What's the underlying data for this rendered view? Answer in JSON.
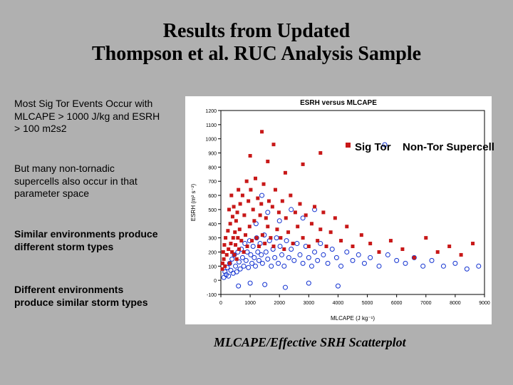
{
  "title_l1": "Results from Updated",
  "title_l2": "Thompson et al. RUC Analysis Sample",
  "side": {
    "p1": "Most Sig Tor Events Occur with MLCAPE > 1000 J/kg and ESRH > 100 m2s2",
    "p2": "But many non-tornadic supercells also occur in that parameter space",
    "p3": "Similar environments produce different storm types",
    "p4": "Different environments produce similar storm types"
  },
  "legend": {
    "a": "Sig Tor",
    "b": "Non-Tor Supercell"
  },
  "caption": "MLCAPE/Effective SRH Scatterplot",
  "chart": {
    "title": "ESRH versus MLCAPE",
    "xlabel": "MLCAPE (J kg⁻¹)",
    "ylabel": "ESRH (m² s⁻²)",
    "xlim": [
      0,
      9000
    ],
    "ylim": [
      -100,
      1200
    ],
    "xtick_step": 1000,
    "ytick_step": 100,
    "bg": "#ffffff",
    "axis_color": "#000000",
    "font_title": 10,
    "font_axis": 8,
    "font_tick": 7,
    "series": {
      "sigtor": {
        "color": "#c81818",
        "marker": "square",
        "size": 5,
        "pts": [
          [
            50,
            80
          ],
          [
            60,
            120
          ],
          [
            80,
            200
          ],
          [
            100,
            150
          ],
          [
            120,
            250
          ],
          [
            140,
            100
          ],
          [
            160,
            300
          ],
          [
            200,
            180
          ],
          [
            240,
            350
          ],
          [
            260,
            220
          ],
          [
            280,
            500
          ],
          [
            300,
            120
          ],
          [
            320,
            400
          ],
          [
            340,
            260
          ],
          [
            360,
            600
          ],
          [
            380,
            200
          ],
          [
            400,
            450
          ],
          [
            420,
            300
          ],
          [
            440,
            520
          ],
          [
            460,
            180
          ],
          [
            480,
            340
          ],
          [
            500,
            250
          ],
          [
            520,
            420
          ],
          [
            540,
            150
          ],
          [
            560,
            480
          ],
          [
            580,
            300
          ],
          [
            600,
            640
          ],
          [
            620,
            220
          ],
          [
            640,
            360
          ],
          [
            660,
            540
          ],
          [
            700,
            280
          ],
          [
            740,
            600
          ],
          [
            780,
            200
          ],
          [
            800,
            460
          ],
          [
            840,
            320
          ],
          [
            880,
            700
          ],
          [
            900,
            240
          ],
          [
            940,
            560
          ],
          [
            980,
            380
          ],
          [
            1020,
            640
          ],
          [
            1060,
            280
          ],
          [
            1100,
            500
          ],
          [
            1140,
            420
          ],
          [
            1180,
            720
          ],
          [
            1220,
            300
          ],
          [
            1260,
            580
          ],
          [
            1300,
            240
          ],
          [
            1340,
            460
          ],
          [
            1380,
            540
          ],
          [
            1420,
            320
          ],
          [
            1460,
            680
          ],
          [
            1500,
            260
          ],
          [
            1540,
            440
          ],
          [
            1600,
            380
          ],
          [
            1640,
            560
          ],
          [
            1700,
            300
          ],
          [
            1760,
            520
          ],
          [
            1800,
            240
          ],
          [
            1860,
            640
          ],
          [
            1920,
            360
          ],
          [
            1980,
            480
          ],
          [
            2040,
            300
          ],
          [
            2100,
            560
          ],
          [
            2160,
            220
          ],
          [
            2220,
            440
          ],
          [
            2300,
            340
          ],
          [
            2380,
            600
          ],
          [
            2460,
            260
          ],
          [
            2540,
            480
          ],
          [
            2620,
            380
          ],
          [
            2700,
            540
          ],
          [
            2800,
            300
          ],
          [
            2900,
            460
          ],
          [
            3000,
            240
          ],
          [
            3100,
            400
          ],
          [
            3200,
            520
          ],
          [
            3300,
            280
          ],
          [
            3400,
            360
          ],
          [
            3500,
            480
          ],
          [
            3600,
            240
          ],
          [
            3750,
            340
          ],
          [
            3900,
            440
          ],
          [
            4100,
            280
          ],
          [
            4300,
            380
          ],
          [
            4500,
            240
          ],
          [
            4800,
            320
          ],
          [
            5100,
            260
          ],
          [
            5400,
            200
          ],
          [
            5800,
            280
          ],
          [
            6200,
            220
          ],
          [
            6600,
            160
          ],
          [
            7000,
            300
          ],
          [
            7400,
            200
          ],
          [
            7800,
            240
          ],
          [
            8200,
            180
          ],
          [
            8600,
            260
          ],
          [
            3400,
            900
          ],
          [
            2800,
            820
          ],
          [
            2200,
            760
          ],
          [
            1600,
            840
          ],
          [
            1400,
            1050
          ],
          [
            1000,
            880
          ],
          [
            1800,
            960
          ]
        ]
      },
      "nontor": {
        "color": "#1030d0",
        "marker": "circle",
        "size": 3,
        "pts": [
          [
            100,
            20
          ],
          [
            140,
            60
          ],
          [
            180,
            40
          ],
          [
            220,
            90
          ],
          [
            260,
            30
          ],
          [
            300,
            120
          ],
          [
            340,
            70
          ],
          [
            380,
            150
          ],
          [
            420,
            50
          ],
          [
            460,
            180
          ],
          [
            500,
            100
          ],
          [
            540,
            60
          ],
          [
            580,
            200
          ],
          [
            620,
            130
          ],
          [
            660,
            80
          ],
          [
            700,
            220
          ],
          [
            740,
            160
          ],
          [
            780,
            100
          ],
          [
            820,
            260
          ],
          [
            860,
            140
          ],
          [
            900,
            200
          ],
          [
            940,
            90
          ],
          [
            980,
            280
          ],
          [
            1020,
            180
          ],
          [
            1060,
            120
          ],
          [
            1100,
            240
          ],
          [
            1140,
            160
          ],
          [
            1180,
            100
          ],
          [
            1220,
            300
          ],
          [
            1260,
            200
          ],
          [
            1300,
            140
          ],
          [
            1340,
            260
          ],
          [
            1380,
            180
          ],
          [
            1420,
            120
          ],
          [
            1480,
            320
          ],
          [
            1540,
            200
          ],
          [
            1600,
            150
          ],
          [
            1660,
            280
          ],
          [
            1720,
            100
          ],
          [
            1780,
            220
          ],
          [
            1840,
            160
          ],
          [
            1900,
            300
          ],
          [
            1960,
            120
          ],
          [
            2020,
            240
          ],
          [
            2080,
            180
          ],
          [
            2160,
            100
          ],
          [
            2240,
            280
          ],
          [
            2320,
            160
          ],
          [
            2400,
            220
          ],
          [
            2500,
            140
          ],
          [
            2600,
            260
          ],
          [
            2700,
            180
          ],
          [
            2800,
            120
          ],
          [
            2900,
            240
          ],
          [
            3000,
            160
          ],
          [
            3100,
            100
          ],
          [
            3200,
            200
          ],
          [
            3300,
            140
          ],
          [
            3400,
            260
          ],
          [
            3500,
            180
          ],
          [
            3650,
            120
          ],
          [
            3800,
            220
          ],
          [
            3950,
            160
          ],
          [
            4100,
            100
          ],
          [
            4300,
            200
          ],
          [
            4500,
            140
          ],
          [
            4700,
            180
          ],
          [
            4900,
            120
          ],
          [
            5100,
            160
          ],
          [
            5400,
            100
          ],
          [
            5700,
            180
          ],
          [
            6000,
            140
          ],
          [
            6300,
            120
          ],
          [
            6600,
            160
          ],
          [
            6900,
            100
          ],
          [
            7200,
            140
          ],
          [
            7600,
            100
          ],
          [
            8000,
            120
          ],
          [
            8400,
            80
          ],
          [
            8800,
            100
          ],
          [
            600,
            -40
          ],
          [
            1000,
            -20
          ],
          [
            1500,
            -30
          ],
          [
            2200,
            -50
          ],
          [
            3000,
            -20
          ],
          [
            4000,
            -40
          ],
          [
            1200,
            400
          ],
          [
            1600,
            480
          ],
          [
            2000,
            420
          ],
          [
            2400,
            500
          ],
          [
            2800,
            440
          ],
          [
            3200,
            500
          ],
          [
            1400,
            600
          ]
        ]
      }
    }
  }
}
